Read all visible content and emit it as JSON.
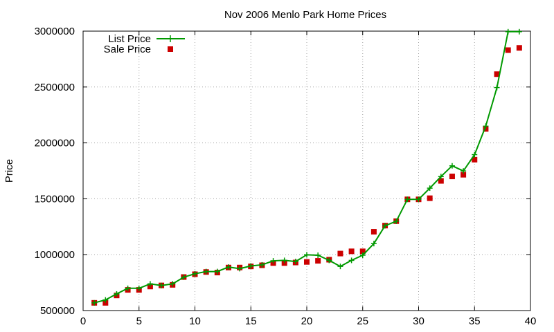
{
  "chart_data": {
    "type": "line",
    "title": "Nov 2006 Menlo Park Home Prices",
    "xlabel": "",
    "ylabel": "Price",
    "xlim": [
      0,
      40
    ],
    "ylim": [
      500000,
      3000000
    ],
    "x_ticks": [
      0,
      5,
      10,
      15,
      20,
      25,
      30,
      35,
      40
    ],
    "y_ticks": [
      500000,
      1000000,
      1500000,
      2000000,
      2500000,
      3000000
    ],
    "grid": true,
    "legend_position": "top-left",
    "series": [
      {
        "name": "List Price",
        "style": "lines+points",
        "marker": "plus",
        "color": "#009900",
        "x": [
          1,
          2,
          3,
          4,
          5,
          6,
          7,
          8,
          9,
          10,
          11,
          12,
          13,
          14,
          15,
          16,
          17,
          18,
          19,
          20,
          21,
          22,
          23,
          24,
          25,
          26,
          27,
          28,
          29,
          30,
          31,
          32,
          33,
          34,
          35,
          36,
          37,
          38,
          39
        ],
        "y": [
          569000,
          595000,
          649000,
          699000,
          699000,
          739000,
          724000,
          739000,
          799000,
          829000,
          849000,
          849000,
          889000,
          875000,
          899000,
          909000,
          945000,
          949000,
          939000,
          999000,
          995000,
          949000,
          895000,
          949000,
          995000,
          1099000,
          1259000,
          1299000,
          1495000,
          1495000,
          1595000,
          1699000,
          1795000,
          1749000,
          1895000,
          2150000,
          2495000,
          2995000,
          2995000
        ]
      },
      {
        "name": "Sale Price",
        "style": "points",
        "marker": "square",
        "color": "#cc0000",
        "x": [
          1,
          2,
          3,
          4,
          5,
          6,
          7,
          8,
          9,
          10,
          11,
          12,
          13,
          14,
          15,
          16,
          17,
          18,
          19,
          20,
          21,
          22,
          23,
          24,
          25,
          26,
          27,
          28,
          29,
          30,
          31,
          32,
          33,
          34,
          35,
          36,
          37,
          38,
          39
        ],
        "y": [
          569000,
          569000,
          635000,
          685000,
          685000,
          715000,
          725000,
          730000,
          800000,
          825000,
          845000,
          840000,
          885000,
          885000,
          895000,
          905000,
          925000,
          925000,
          930000,
          935000,
          945000,
          955000,
          1010000,
          1030000,
          1030000,
          1205000,
          1260000,
          1300000,
          1495000,
          1495000,
          1505000,
          1660000,
          1700000,
          1715000,
          1850000,
          2125000,
          2615000,
          2830000,
          2850000
        ]
      }
    ]
  }
}
